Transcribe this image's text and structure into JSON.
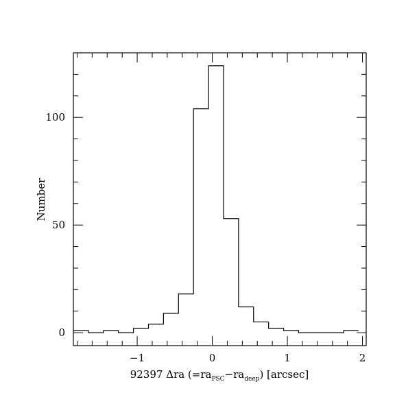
{
  "chart_data": {
    "type": "histogram",
    "title": "",
    "xlabel": {
      "prefix": "92397 Δra (=ra",
      "sub1": "PSC",
      "mid": "−ra",
      "sub2": "deep",
      "suffix": ") [arcsec]"
    },
    "ylabel": "Number",
    "xlim": [
      -1.85,
      2.05
    ],
    "ylim": [
      -6,
      130
    ],
    "xticks": [
      -1,
      0,
      1,
      2
    ],
    "xtick_labels": [
      "−1",
      "0",
      "1",
      "2"
    ],
    "yticks": [
      0,
      50,
      100
    ],
    "ytick_labels": [
      "0",
      "50",
      "100"
    ],
    "x_minor_step": 0.2,
    "y_minor_step": 10,
    "grid": false,
    "bins": {
      "edges": [
        -1.85,
        -1.65,
        -1.45,
        -1.25,
        -1.05,
        -0.85,
        -0.65,
        -0.45,
        -0.25,
        -0.05,
        0.15,
        0.35,
        0.55,
        0.75,
        0.95,
        1.15,
        1.35,
        1.55,
        1.75,
        1.95
      ],
      "counts": [
        1,
        0,
        1,
        0,
        2,
        4,
        9,
        18,
        104,
        124,
        53,
        12,
        5,
        2,
        1,
        0,
        0,
        0,
        1
      ]
    }
  }
}
